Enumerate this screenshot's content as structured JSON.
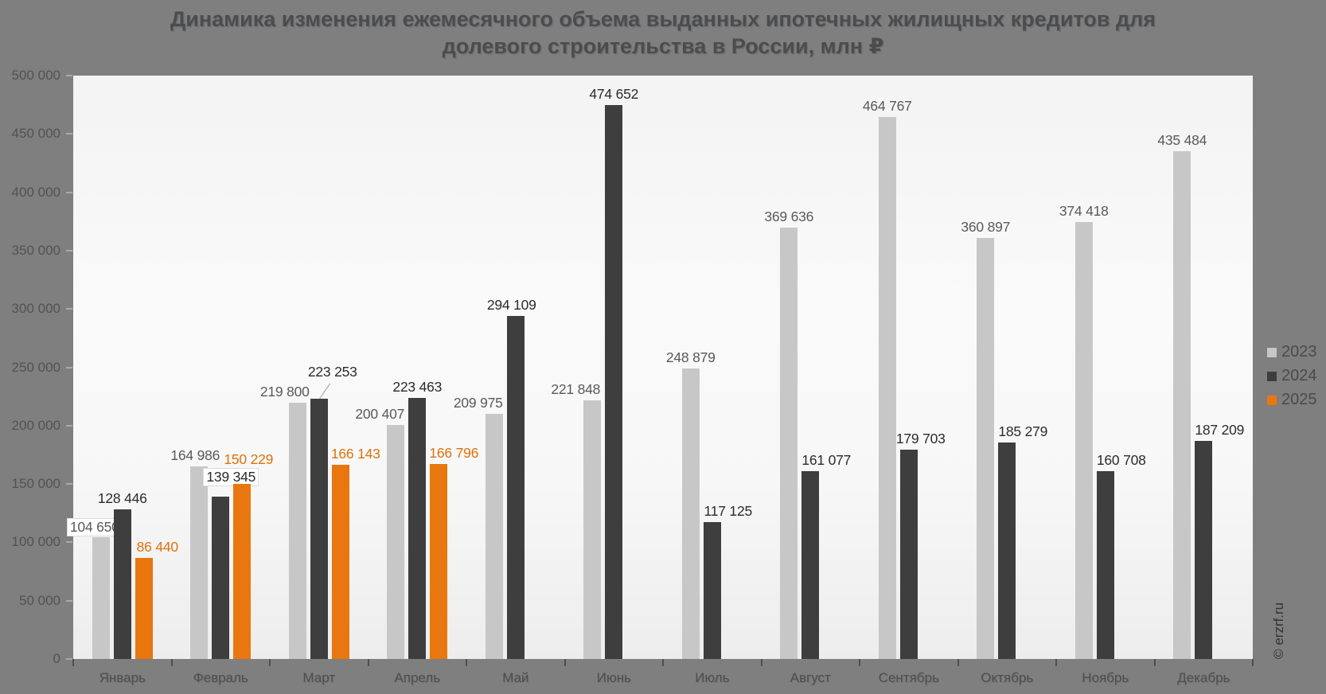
{
  "title": {
    "text": "Динамика изменения ежемесячного объема выданных ипотечных жилищных кредитов для долевого строительства в России, млн ₽"
  },
  "watermark": "© erzrf.ru",
  "chart_data": {
    "type": "bar",
    "title": "Динамика изменения ежемесячного объема выданных ипотечных жилищных кредитов для долевого строительства в России, млн ₽",
    "categories": [
      "Январь",
      "Февраль",
      "Март",
      "Апрель",
      "Май",
      "Июнь",
      "Июль",
      "Август",
      "Сентябрь",
      "Октябрь",
      "Ноябрь",
      "Декабрь"
    ],
    "series": [
      {
        "name": "2023",
        "color": "#c7c7c7",
        "label_color": "#595959",
        "values": [
          104650,
          164986,
          219800,
          200407,
          209975,
          221848,
          248879,
          369636,
          464767,
          360897,
          374418,
          435484
        ]
      },
      {
        "name": "2024",
        "color": "#3e3e3e",
        "label_color": "#2b2b2b",
        "values": [
          128446,
          139345,
          223253,
          223463,
          294109,
          474652,
          117125,
          161077,
          179703,
          185279,
          160708,
          187209
        ]
      },
      {
        "name": "2025",
        "color": "#e8770f",
        "label_color": "#e0720a",
        "values": [
          86440,
          150229,
          166143,
          166796,
          null,
          null,
          null,
          null,
          null,
          null,
          null,
          null
        ]
      }
    ],
    "xlabel": "",
    "ylabel": "",
    "ylim": [
      0,
      500000
    ],
    "ytick_step": 50000,
    "ytick_labels": [
      "0",
      "50 000",
      "100 000",
      "150 000",
      "200 000",
      "250 000",
      "300 000",
      "350 000",
      "400 000",
      "450 000",
      "500 000"
    ],
    "grid": false,
    "value_labels": true,
    "legend_position": "right"
  }
}
